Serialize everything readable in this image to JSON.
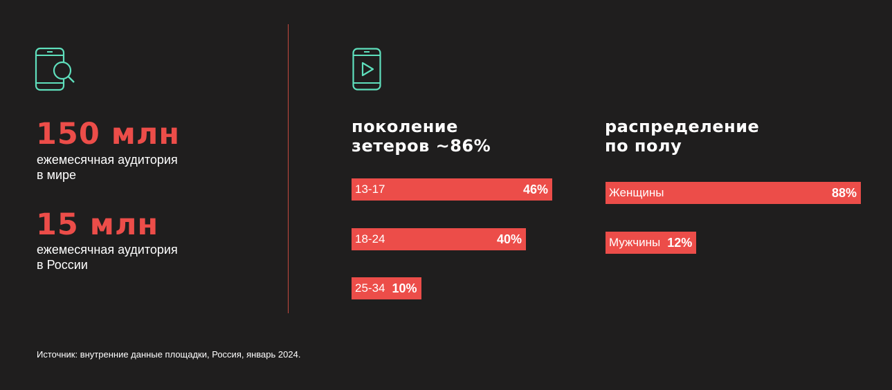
{
  "stats": [
    {
      "value": "150 млн",
      "label_lines": [
        "ежемесячная аудитория",
        "в мире"
      ]
    },
    {
      "value": "15 млн",
      "label_lines": [
        "ежемесячная аудитория",
        "в России"
      ]
    }
  ],
  "icons": {
    "left": "phone-search-icon",
    "right": "phone-video-icon",
    "accent_color": "#5fe0bd"
  },
  "colors": {
    "bar": "#ec4d49",
    "background": "#1f1e1e",
    "divider": "#c4483f"
  },
  "source": "Источник: внутренние данные площадки, Россия, январь 2024.",
  "chart_data": [
    {
      "type": "bar",
      "orientation": "horizontal",
      "title_lines": [
        "поколение",
        "зетеров ~86%"
      ],
      "categories": [
        "13-17",
        "18-24",
        "25-34"
      ],
      "values": [
        46,
        40,
        10
      ],
      "value_labels": [
        "46%",
        "40%",
        "10%"
      ],
      "unit": "%"
    },
    {
      "type": "bar",
      "orientation": "horizontal",
      "title_lines": [
        "распределение",
        "по полу"
      ],
      "categories": [
        "Женщины",
        "Мужчины"
      ],
      "values": [
        88,
        12
      ],
      "value_labels": [
        "88%",
        "12%"
      ],
      "unit": "%"
    }
  ]
}
